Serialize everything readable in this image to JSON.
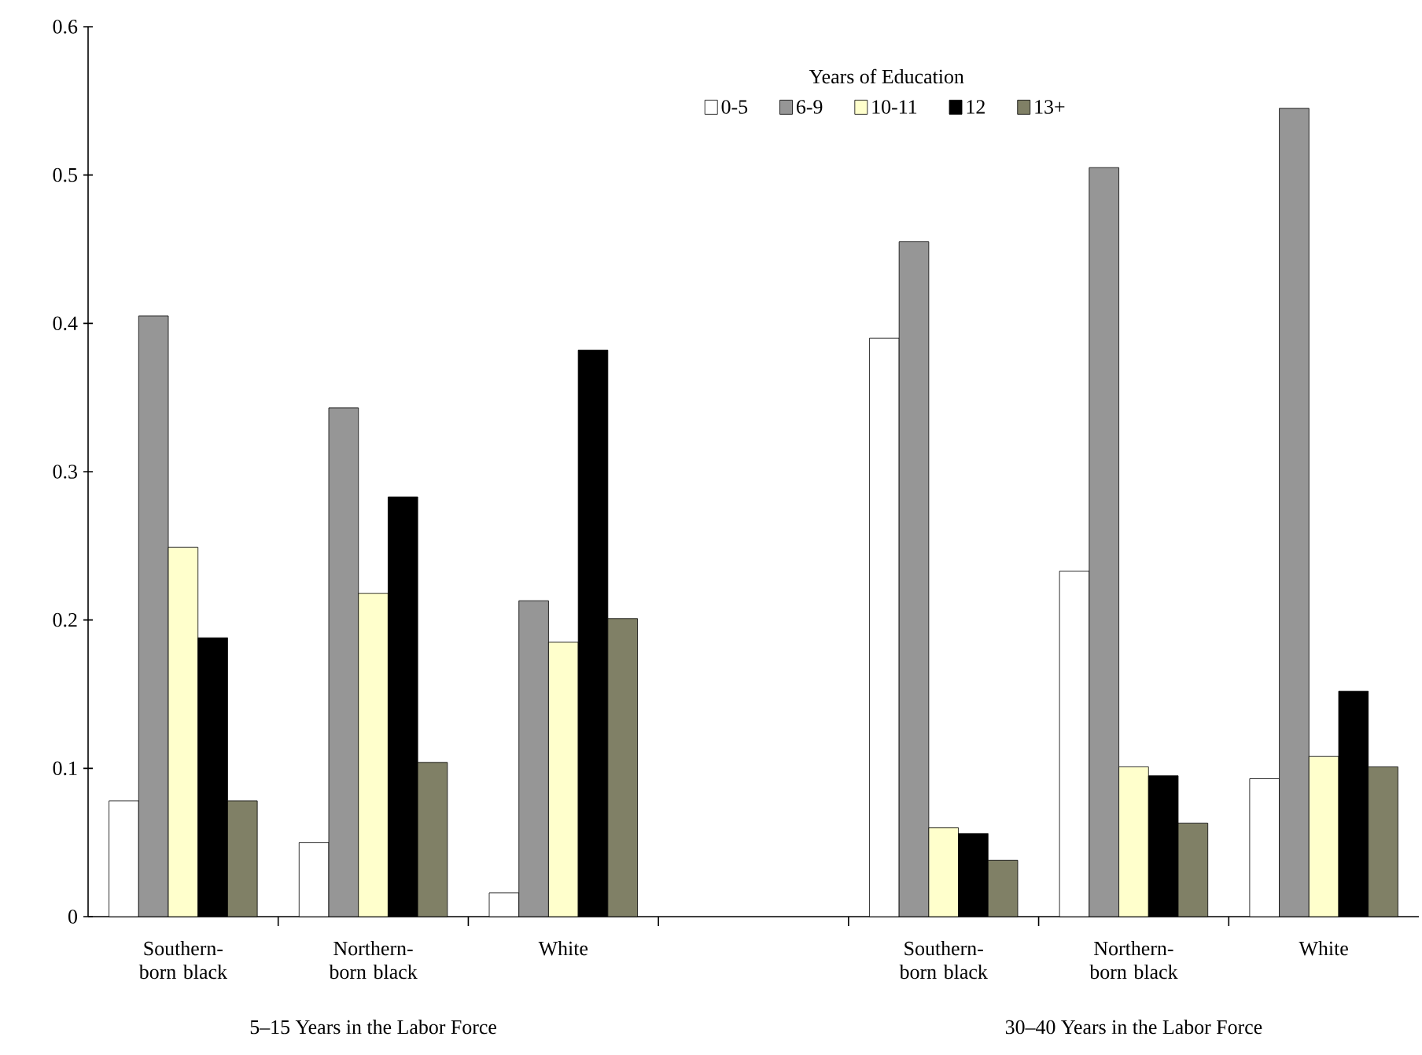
{
  "chart_data": {
    "type": "bar",
    "categories": [
      "Southern-born black",
      "Northern-born black",
      "White",
      null,
      "Southern-born black",
      "Northern-born black",
      "White"
    ],
    "legend_title": "Years of Education",
    "series": [
      {
        "name": "0-5",
        "color": "#ffffff",
        "values": [
          0.078,
          0.05,
          0.016,
          null,
          0.39,
          0.233,
          0.093
        ]
      },
      {
        "name": "6-9",
        "color": "#969696",
        "values": [
          0.405,
          0.343,
          0.213,
          null,
          0.455,
          0.505,
          0.545
        ]
      },
      {
        "name": "10-11",
        "color": "#ffffcc",
        "values": [
          0.249,
          0.218,
          0.185,
          null,
          0.06,
          0.101,
          0.108
        ]
      },
      {
        "name": "12",
        "color": "#000000",
        "values": [
          0.188,
          0.283,
          0.382,
          null,
          0.056,
          0.095,
          0.152
        ]
      },
      {
        "name": "13+",
        "color": "#808066",
        "values": [
          0.078,
          0.104,
          0.201,
          null,
          0.038,
          0.063,
          0.101
        ]
      }
    ],
    "ylim": [
      0,
      0.6
    ],
    "yticks": [
      0,
      0.1,
      0.2,
      0.3,
      0.4,
      0.5,
      0.6
    ],
    "legend": "top",
    "annotations": [
      "5–15 Years in the Labor Force",
      "30–40 Years in the Labor Force"
    ]
  }
}
